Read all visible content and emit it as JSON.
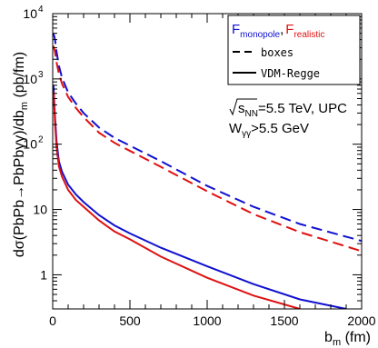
{
  "chart_data": {
    "type": "line",
    "ylabel": {
      "main": "dσ(PbPb→PbPbγγ)/db",
      "sub": "m",
      "unit": "  (pb/fm)"
    },
    "xlabel": {
      "main": "b",
      "sub": "m",
      "unit": " (fm)"
    },
    "xlim": [
      0,
      2000
    ],
    "ylim": [
      0.3,
      10000
    ],
    "yscale": "log",
    "grid": false,
    "x_tick_labels": [
      "0",
      "500",
      "1000",
      "1500",
      "2000"
    ],
    "y_tick_labels": [
      {
        "base": "1",
        "exp": ""
      },
      {
        "base": "10",
        "exp": ""
      },
      {
        "base": "10",
        "exp": "2"
      },
      {
        "base": "10",
        "exp": "3"
      },
      {
        "base": "10",
        "exp": "4"
      }
    ],
    "legend": {
      "position": "top-right",
      "title_blue": {
        "main": "F",
        "sub": "monopole"
      },
      "title_sep": ",",
      "title_red": {
        "main": "F",
        "sub": "realistic"
      },
      "entries": [
        {
          "label": "boxes",
          "style": "dashed"
        },
        {
          "label": "VDM-Regge",
          "style": "solid"
        }
      ]
    },
    "annotation": {
      "line1_main": "s",
      "line1_sub": "NN",
      "line1_rest": "=5.5 TeV, UPC",
      "line2_main": "W",
      "line2_sub": "γγ",
      "line2_rest": ">5.5 GeV"
    },
    "series": [
      {
        "color": "#1010d0",
        "style": "dashed",
        "x": [
          5,
          15,
          25,
          40,
          60,
          100,
          150,
          200,
          300,
          400,
          500,
          700,
          1000,
          1300,
          1600,
          2000
        ],
        "y": [
          5000,
          4000,
          2600,
          1600,
          1050,
          620,
          420,
          300,
          180,
          125,
          95,
          55,
          23,
          11,
          6,
          3.3
        ]
      },
      {
        "color": "#e01010",
        "style": "dashed",
        "x": [
          5,
          15,
          25,
          40,
          60,
          100,
          150,
          200,
          300,
          400,
          500,
          700,
          1000,
          1300,
          1600,
          2000
        ],
        "y": [
          3200,
          2600,
          1800,
          1200,
          850,
          530,
          360,
          260,
          150,
          105,
          79,
          45,
          19,
          8.5,
          4.5,
          2.3
        ]
      },
      {
        "color": "#1010d0",
        "style": "solid",
        "x": [
          5,
          15,
          25,
          40,
          60,
          100,
          150,
          200,
          300,
          400,
          500,
          700,
          1000,
          1300,
          1600,
          1900
        ],
        "y": [
          800,
          260,
          110,
          55,
          38,
          24,
          17,
          13,
          8.2,
          5.7,
          4.3,
          2.6,
          1.35,
          0.72,
          0.42,
          0.3
        ]
      },
      {
        "color": "#e01010",
        "style": "solid",
        "x": [
          5,
          15,
          25,
          40,
          60,
          100,
          150,
          200,
          300,
          400,
          500,
          700,
          1000,
          1300,
          1600
        ],
        "y": [
          640,
          210,
          90,
          46,
          32,
          20,
          14,
          11,
          6.8,
          4.6,
          3.5,
          1.9,
          0.9,
          0.48,
          0.3
        ]
      }
    ]
  }
}
